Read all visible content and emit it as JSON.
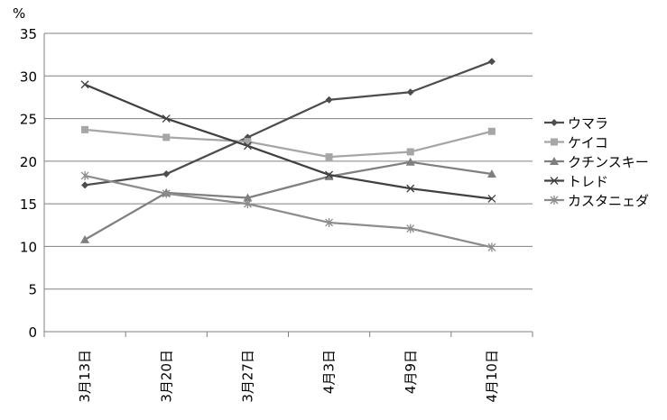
{
  "chart_data": {
    "type": "line",
    "title": "",
    "xlabel": "",
    "ylabel": "%",
    "ylim": [
      0,
      35
    ],
    "yticks": [
      0,
      5,
      10,
      15,
      20,
      25,
      30,
      35
    ],
    "ytick_labels": [
      "0",
      "5",
      "10",
      "15",
      "20",
      "25",
      "30",
      "35"
    ],
    "grid": "horizontal",
    "legend_position": "right",
    "categories": [
      "3月13日",
      "3月20日",
      "3月27日",
      "4月3日",
      "4月9日",
      "4月10日"
    ],
    "series": [
      {
        "name": "ウマラ",
        "values": [
          17.2,
          18.5,
          22.8,
          27.2,
          28.1,
          31.7
        ],
        "color": "#4d4d4d",
        "marker": "diamond"
      },
      {
        "name": "ケイコ",
        "values": [
          23.7,
          22.8,
          22.3,
          20.5,
          21.1,
          23.5
        ],
        "color": "#a6a6a6",
        "marker": "square"
      },
      {
        "name": "クチンスキー",
        "values": [
          10.8,
          16.3,
          15.7,
          18.2,
          19.9,
          18.5
        ],
        "color": "#7f7f7f",
        "marker": "triangle"
      },
      {
        "name": "トレド",
        "values": [
          29.0,
          25.0,
          21.8,
          18.4,
          16.8,
          15.6
        ],
        "color": "#404040",
        "marker": "x"
      },
      {
        "name": "カスタニェダ",
        "values": [
          18.3,
          16.2,
          15.0,
          12.8,
          12.1,
          9.9
        ],
        "color": "#8c8c8c",
        "marker": "star"
      }
    ]
  }
}
